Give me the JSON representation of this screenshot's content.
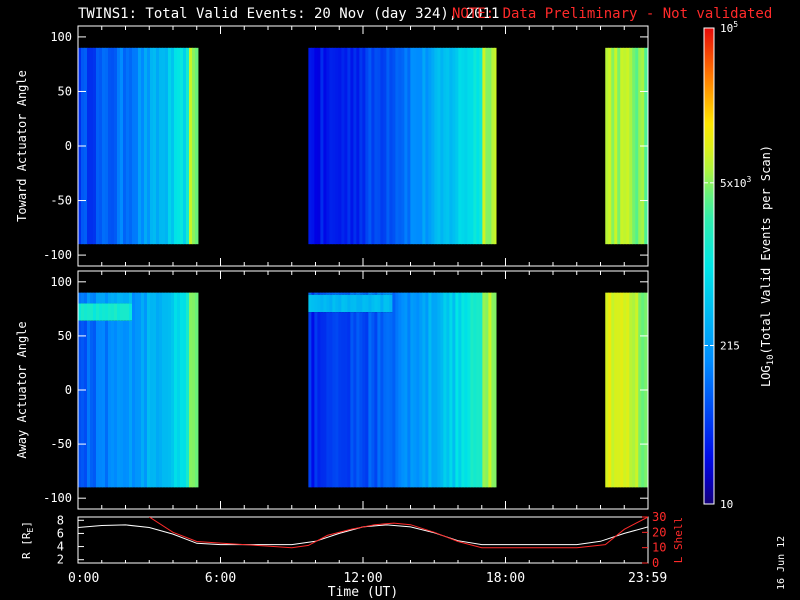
{
  "title": {
    "main": "TWINS1: Total Valid Events: 20 Nov (day 324), 2011",
    "note": "NOTE: Data Preliminary - Not validated",
    "note_color": "#ff2a2a"
  },
  "date_stamp": "16 Jun 12",
  "chart_data": [
    {
      "type": "heatmap",
      "panel": "top",
      "ylabel": "Toward Actuator Angle",
      "ylim": [
        -110,
        110
      ],
      "yticks": [
        "100",
        "50",
        "0",
        "-50",
        "-100"
      ],
      "ytick_values": [
        100,
        50,
        0,
        -50,
        -100
      ],
      "xlim_hours": [
        0,
        24
      ],
      "data_ylim": [
        -90,
        90
      ],
      "segments": [
        {
          "start_hour": 0.0,
          "end_hour": 5.05,
          "log_start": 1.75,
          "log_end": 3.2,
          "edge_log": 3.75
        },
        {
          "start_hour": 9.7,
          "end_hour": 17.6,
          "log_start": 1.4,
          "log_end": 3.4,
          "edge_log": 3.85
        },
        {
          "start_hour": 22.2,
          "end_hour": 24.0,
          "log_start": 3.85,
          "log_end": 3.55,
          "edge_log": 3.5
        }
      ]
    },
    {
      "type": "heatmap",
      "panel": "middle",
      "ylabel": "Away Actuator Angle",
      "ylim": [
        -110,
        110
      ],
      "yticks": [
        "100",
        "50",
        "0",
        "-50",
        "-100"
      ],
      "ytick_values": [
        100,
        50,
        0,
        -50,
        -100
      ],
      "xlim_hours": [
        0,
        24
      ],
      "data_ylim": [
        -90,
        90
      ],
      "xticks": [
        "0:00",
        "6:00",
        "12:00",
        "18:00",
        "23:59"
      ],
      "xtick_hours": [
        0,
        6,
        12,
        18,
        23.983
      ],
      "xlabel": "Time (UT)",
      "segments": [
        {
          "start_hour": 0.0,
          "end_hour": 5.05,
          "log_start": 1.95,
          "log_end": 3.2,
          "edge_log": 3.75,
          "band_angle": 72,
          "band_log": 3.15
        },
        {
          "start_hour": 9.7,
          "end_hour": 17.6,
          "log_start": 1.55,
          "log_end": 3.45,
          "edge_log": 3.85,
          "band_angle": 80,
          "band_log": 2.6
        },
        {
          "start_hour": 22.2,
          "end_hour": 24.0,
          "log_start": 4.05,
          "log_end": 3.6,
          "edge_log": 3.55
        }
      ]
    },
    {
      "type": "line",
      "panel": "orbit",
      "ylabel_left": "R [R",
      "ylabel_left_sub": "E",
      "ylabel_left_close": "]",
      "ylabel_right": "L Shell",
      "yticks_left": [
        "8",
        "6",
        "4",
        "2"
      ],
      "ytick_left_values": [
        8,
        6,
        4,
        2
      ],
      "ylim_left": [
        1.5,
        8.5
      ],
      "yticks_right": [
        "30",
        "20",
        "10",
        "0"
      ],
      "ytick_right_values": [
        30,
        20,
        10,
        0
      ],
      "ylim_right": [
        0,
        30
      ],
      "right_axis_color": "#ff2a2a",
      "series": [
        {
          "name": "R",
          "color": "#ffffff",
          "axis": "left",
          "x": [
            0,
            1,
            2,
            3,
            4,
            5,
            6,
            7,
            8,
            9,
            10,
            11,
            12,
            13,
            14,
            15,
            16,
            17,
            18,
            19,
            20,
            21,
            22,
            23,
            24
          ],
          "y": [
            6.9,
            7.2,
            7.3,
            6.9,
            5.9,
            4.5,
            4.3,
            4.3,
            4.3,
            4.3,
            4.8,
            6.0,
            7.0,
            7.3,
            7.0,
            6.1,
            4.9,
            4.3,
            4.3,
            4.3,
            4.3,
            4.3,
            4.8,
            6.0,
            7.0
          ]
        },
        {
          "name": "L",
          "color": "#ff2a2a",
          "axis": "right",
          "x": [
            3.0,
            4.0,
            5.0,
            6.0,
            7.0,
            8.0,
            9.0,
            9.7,
            10.5,
            11.5,
            12.5,
            13.3,
            14.0,
            15.0,
            16.0,
            17.0,
            18.0,
            19.0,
            20.0,
            21.0,
            22.2,
            23.0,
            24.0
          ],
          "y": [
            30.0,
            20.0,
            14.0,
            13.0,
            12.0,
            11.0,
            10.0,
            11.5,
            18.0,
            22.0,
            25.0,
            26.0,
            25.0,
            20.0,
            14.0,
            10.0,
            10.0,
            10.0,
            10.0,
            10.0,
            12.0,
            22.0,
            30.0
          ]
        }
      ]
    },
    {
      "type": "colorbar",
      "label_prefix": "LOG",
      "label_sub": "10",
      "label_main": "(Total Valid Events per Scan)",
      "log_range": [
        1,
        5
      ],
      "ticks": [
        {
          "log": 5,
          "base": "10",
          "sup": "5"
        },
        {
          "log": 3.699,
          "base": "5x10",
          "sup": "3"
        },
        {
          "log": 2.332,
          "base": "215",
          "sup": ""
        },
        {
          "log": 1,
          "base": "10",
          "sup": ""
        }
      ]
    }
  ]
}
